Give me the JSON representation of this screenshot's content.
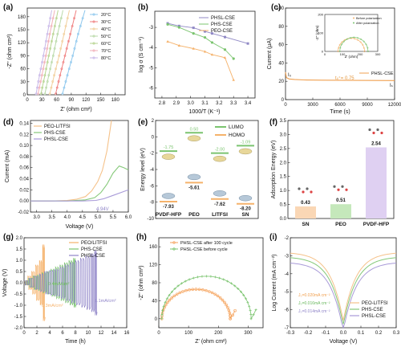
{
  "panels": {
    "a": {
      "label": "(a)",
      "xlabel": "Z' (ohm cm²)",
      "ylabel": "-Z'' (ohm cm²)",
      "legend": [
        "20°C",
        "30°C",
        "40°C",
        "50°C",
        "60°C",
        "70°C",
        "80°C"
      ],
      "colors": [
        "#8fc8ee",
        "#f08080",
        "#f2cf9c",
        "#b9d9a8",
        "#b6d48f",
        "#f2b0b8",
        "#c9b8e8"
      ]
    },
    "b": {
      "label": "(b)",
      "xlabel": "1000/T (K⁻¹)",
      "ylabel": "log σ (S cm⁻¹)",
      "legend": [
        "PHSL-CSE",
        "PHS-CSE",
        "PEO-CSE"
      ],
      "colors": [
        "#9089c5",
        "#7bc46f",
        "#f5b26b"
      ]
    },
    "c": {
      "label": "(c)",
      "xlabel": "Time (s)",
      "ylabel": "Current (μA)",
      "i0_label": "I₀",
      "is_label": "Iₛ",
      "t_label": "tₗᵢ⁺= 0.75",
      "legend": [
        "PHSL-CSE"
      ],
      "inset_legend": [
        "Before polarization",
        "After polarization"
      ],
      "inset_xlabel": "Z' (ohm)",
      "inset_ylabel": "-Z'' (ohm)",
      "inset_xticks": [
        "0",
        "100",
        "200",
        "300"
      ],
      "inset_yticks": [
        "0",
        "100",
        "200"
      ]
    },
    "d": {
      "label": "(d)",
      "xlabel": "Voltage (V)",
      "ylabel": "Current (mA)",
      "legend": [
        "PEO-LITFSI",
        "PHS-CSE",
        "PHSL-CSE"
      ],
      "colors": [
        "#f5c28a",
        "#86c97a",
        "#a89ad8"
      ],
      "annotation": "4.94V"
    },
    "e": {
      "label": "(e)",
      "ylabel": "Energy level (eV)",
      "legend": [
        "LUMO",
        "HOMO"
      ],
      "materials": [
        "PVDF-HFP",
        "PEO",
        "LITFSI",
        "SN"
      ],
      "lumo": [
        "-1.75",
        "0.50",
        "-2.00",
        "-1.09"
      ],
      "homo": [
        "-7.93",
        "-5.61",
        "-7.62",
        "-8.20"
      ]
    },
    "f": {
      "label": "(f)",
      "ylabel": "Adsorption Energy (eV)",
      "categories": [
        "SN",
        "PEO",
        "PVDF-HFP"
      ],
      "value_labels": [
        "0.43",
        "0.51",
        "2.54"
      ],
      "colors": [
        "#fad7b5",
        "#c5e8bb",
        "#dfd0f2"
      ]
    },
    "g": {
      "label": "(g)",
      "xlabel": "Time (h)",
      "ylabel": "Voltage (V)",
      "legend": [
        "PEO/LITFSI",
        "PHS-CSE",
        "PHSL-CSE"
      ],
      "colors": [
        "#f5b26b",
        "#7bc46f",
        "#8f84c8"
      ],
      "annotations": [
        "0.4mA/cm²",
        "0.3mA/cm²",
        "1.1mA/cm²"
      ]
    },
    "h": {
      "label": "(h)",
      "xlabel": "Z' (ohm cm²)",
      "ylabel": "-Z'' (ohm cm²)",
      "legend": [
        "PHSL-CSE after 100 cycle",
        "PHSL-CSE before cycle"
      ],
      "colors": [
        "#f5a25b",
        "#7bc46f"
      ]
    },
    "i": {
      "label": "(i)",
      "xlabel": "Voltage (V)",
      "ylabel": "Log Current (mA cm⁻²)",
      "legend": [
        "PEO-LITFSI",
        "PHS-CSE",
        "PHSL-CSE"
      ],
      "colors": [
        "#f5c28a",
        "#86c97a",
        "#a89ad8"
      ],
      "annotations": [
        "J₀=0.020mA cm⁻²",
        "J₀=0.016mA cm⁻²",
        "J₀=0.014mA cm⁻²"
      ]
    }
  },
  "chart_data": [
    {
      "id": "a",
      "type": "line",
      "xlim": [
        0,
        200
      ],
      "ylim": [
        0,
        200
      ],
      "xticks": [
        0,
        30,
        60,
        90,
        120,
        150,
        180
      ],
      "yticks": [
        0,
        30,
        60,
        90,
        120,
        150,
        180
      ],
      "series": [
        {
          "name": "20°C",
          "x": [
            72,
            82,
            93,
            104,
            118
          ],
          "y": [
            2,
            45,
            90,
            140,
            195
          ]
        },
        {
          "name": "30°C",
          "x": [
            58,
            67,
            77,
            88,
            100
          ],
          "y": [
            2,
            45,
            90,
            140,
            195
          ]
        },
        {
          "name": "40°C",
          "x": [
            46,
            55,
            65,
            75,
            86
          ],
          "y": [
            2,
            45,
            90,
            140,
            195
          ]
        },
        {
          "name": "50°C",
          "x": [
            36,
            44,
            53,
            62,
            73
          ],
          "y": [
            2,
            45,
            90,
            140,
            195
          ]
        },
        {
          "name": "60°C",
          "x": [
            28,
            36,
            44,
            53,
            63
          ],
          "y": [
            2,
            45,
            90,
            140,
            195
          ]
        },
        {
          "name": "70°C",
          "x": [
            22,
            30,
            38,
            46,
            56
          ],
          "y": [
            2,
            45,
            90,
            140,
            195
          ]
        },
        {
          "name": "80°C",
          "x": [
            18,
            25,
            33,
            41,
            50
          ],
          "y": [
            2,
            45,
            90,
            140,
            195
          ]
        }
      ]
    },
    {
      "id": "b",
      "type": "line",
      "xlim": [
        2.75,
        3.45
      ],
      "ylim": [
        -6.5,
        -2.2
      ],
      "xticks": [
        2.8,
        2.9,
        3.0,
        3.1,
        3.2,
        3.3,
        3.4
      ],
      "yticks": [
        -6,
        -5,
        -4,
        -3
      ],
      "series": [
        {
          "name": "PHSL-CSE",
          "x": [
            2.84,
            2.92,
            3.02,
            3.1,
            3.15,
            3.24,
            3.4
          ],
          "y": [
            -2.8,
            -2.93,
            -3.02,
            -3.2,
            -3.3,
            -3.48,
            -3.8
          ]
        },
        {
          "name": "PHS-CSE",
          "x": [
            2.84,
            2.92,
            3.02,
            3.1,
            3.15,
            3.24,
            3.3
          ],
          "y": [
            -2.85,
            -3.0,
            -3.3,
            -3.5,
            -3.75,
            -4.1,
            -4.55
          ]
        },
        {
          "name": "PEO-CSE",
          "x": [
            2.84,
            2.92,
            3.02,
            3.1,
            3.15,
            3.24,
            3.3
          ],
          "y": [
            -3.7,
            -3.9,
            -4.05,
            -4.2,
            -4.35,
            -4.5,
            -5.6
          ]
        }
      ]
    },
    {
      "id": "c",
      "type": "line",
      "xlim": [
        0,
        12000
      ],
      "ylim": [
        0,
        100
      ],
      "xticks": [
        0,
        3000,
        6000,
        9000,
        12000
      ],
      "yticks": [
        0,
        20,
        40,
        60,
        80,
        100
      ],
      "series": [
        {
          "name": "PHSL-CSE",
          "x": [
            0,
            100,
            400,
            1000,
            2000,
            4000,
            8000,
            12000
          ],
          "y": [
            30,
            24,
            22.5,
            22,
            21.5,
            21.2,
            21,
            20.8
          ]
        }
      ]
    },
    {
      "id": "d",
      "type": "line",
      "xlim": [
        2.8,
        6.0
      ],
      "ylim": [
        -0.02,
        0.145
      ],
      "xticks": [
        3.0,
        3.5,
        4.0,
        4.5,
        5.0,
        5.5,
        6.0
      ],
      "yticks": [
        -0.02,
        0.0,
        0.02,
        0.04,
        0.06,
        0.08,
        0.1,
        0.12,
        0.14
      ],
      "series": [
        {
          "name": "PEO-LITFSI",
          "x": [
            2.8,
            3.5,
            4.0,
            4.3,
            4.6,
            4.8,
            5.0,
            5.15,
            5.3,
            5.45
          ],
          "y": [
            0.0,
            0.0,
            0.001,
            0.003,
            0.008,
            0.018,
            0.035,
            0.055,
            0.09,
            0.145
          ]
        },
        {
          "name": "PHS-CSE",
          "x": [
            2.8,
            4.0,
            4.6,
            4.9,
            5.1,
            5.3,
            5.5,
            5.7,
            5.85,
            6.0
          ],
          "y": [
            0.0,
            0.0,
            0.002,
            0.006,
            0.015,
            0.03,
            0.05,
            0.063,
            0.06,
            0.056
          ]
        },
        {
          "name": "PHSL-CSE",
          "x": [
            2.8,
            4.5,
            4.94,
            5.2,
            5.5,
            5.8,
            6.0
          ],
          "y": [
            0.0,
            0.0,
            0.001,
            0.004,
            0.01,
            0.016,
            0.02
          ]
        }
      ]
    },
    {
      "id": "e",
      "type": "bar",
      "ylim": [
        -10,
        2
      ],
      "yticks": [
        -10,
        -8,
        -6,
        -4,
        -2,
        0,
        2
      ],
      "categories": [
        "PVDF-HFP",
        "PEO",
        "LITFSI",
        "SN"
      ],
      "series": [
        {
          "name": "LUMO",
          "values": [
            -1.75,
            0.5,
            -2.0,
            -1.09
          ]
        },
        {
          "name": "HOMO",
          "values": [
            -7.93,
            -5.61,
            -7.62,
            -8.2
          ]
        }
      ]
    },
    {
      "id": "f",
      "type": "bar",
      "ylim": [
        0,
        3.5
      ],
      "yticks": [
        0,
        0.5,
        1.0,
        1.5,
        2.0,
        2.5,
        3.0,
        3.5
      ],
      "categories": [
        "SN",
        "PEO",
        "PVDF-HFP"
      ],
      "values": [
        0.43,
        0.51,
        2.54
      ]
    },
    {
      "id": "g",
      "type": "line",
      "xlim": [
        0,
        16
      ],
      "ylim": [
        -2.0,
        2.0
      ],
      "xticks": [
        0,
        2,
        4,
        6,
        8,
        10,
        12,
        14,
        16
      ],
      "yticks": [
        -2.0,
        -1.5,
        -1.0,
        -0.5,
        0.0,
        0.5,
        1.0,
        1.5,
        2.0
      ],
      "series": [
        {
          "name": "PEO/LITFSI",
          "segments": [
            [
              0.0,
              0.1
            ],
            [
              0.6,
              0.3
            ],
            [
              1.2,
              0.5
            ],
            [
              1.8,
              0.8
            ],
            [
              2.4,
              1.0
            ],
            [
              2.9,
              1.7
            ]
          ]
        },
        {
          "name": "PHS-CSE",
          "segments": [
            [
              0.0,
              0.1
            ],
            [
              0.7,
              0.2
            ],
            [
              1.4,
              0.3
            ],
            [
              2.1,
              0.35
            ],
            [
              2.8,
              0.45
            ],
            [
              3.5,
              0.5
            ],
            [
              4.2,
              0.6
            ],
            [
              4.9,
              0.7
            ],
            [
              5.6,
              0.8
            ],
            [
              6.3,
              0.9
            ],
            [
              7.0,
              1.0
            ],
            [
              7.7,
              1.1
            ]
          ]
        },
        {
          "name": "PHSL-CSE",
          "segments": [
            [
              0.0,
              0.1
            ],
            [
              0.8,
              0.2
            ],
            [
              1.6,
              0.3
            ],
            [
              2.4,
              0.4
            ],
            [
              3.2,
              0.5
            ],
            [
              4.0,
              0.55
            ],
            [
              4.8,
              0.6
            ],
            [
              5.6,
              0.7
            ],
            [
              6.4,
              0.8
            ],
            [
              7.2,
              0.9
            ],
            [
              8.0,
              1.0
            ],
            [
              8.8,
              1.1
            ],
            [
              9.6,
              1.2
            ],
            [
              10.4,
              1.3
            ],
            [
              11.0,
              1.45
            ]
          ]
        }
      ]
    },
    {
      "id": "h",
      "type": "scatter",
      "xlim": [
        0,
        350
      ],
      "ylim": [
        -20,
        180
      ],
      "xticks": [
        0,
        100,
        200,
        300
      ],
      "yticks": [
        0,
        40,
        80,
        120,
        160
      ],
      "series": [
        {
          "name": "PHSL-CSE after 100 cycle",
          "center": 125,
          "radius": 115,
          "yscale": 0.57,
          "tail": [
            [
              240,
              0
            ],
            [
              248,
              8
            ],
            [
              256,
              18
            ]
          ]
        },
        {
          "name": "PHSL-CSE before cycle",
          "center": 160,
          "radius": 150,
          "yscale": 0.63,
          "tail": [
            [
              310,
              0
            ],
            [
              318,
              9
            ],
            [
              326,
              20
            ]
          ]
        }
      ]
    },
    {
      "id": "i",
      "type": "line",
      "xlim": [
        -0.3,
        0.3
      ],
      "ylim": [
        -7,
        -2
      ],
      "xticks": [
        -0.3,
        -0.2,
        -0.1,
        0.0,
        0.1,
        0.2,
        0.3
      ],
      "yticks": [
        -7,
        -6,
        -5,
        -4,
        -3,
        -2
      ],
      "series": [
        {
          "name": "PEO-LITFSI",
          "base": -2.8,
          "slope": 5.0,
          "min": -6.6,
          "offset": 0.0
        },
        {
          "name": "PHS-CSE",
          "base": -3.05,
          "slope": 5.4,
          "min": -6.8,
          "offset": 0.0
        },
        {
          "name": "PHSL-CSE",
          "base": -3.35,
          "slope": 5.8,
          "min": -7.0,
          "offset": 0.0
        }
      ]
    }
  ]
}
